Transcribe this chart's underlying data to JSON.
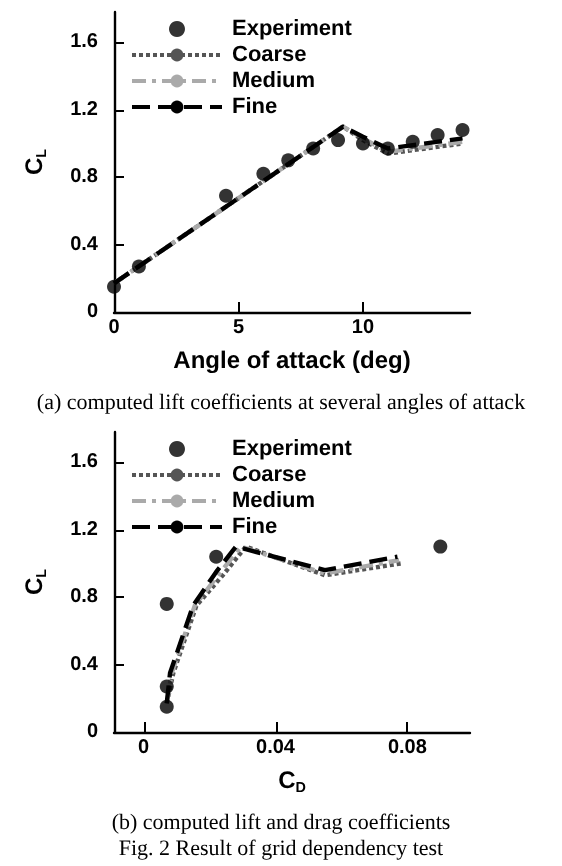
{
  "chart_data": [
    {
      "type": "line",
      "xlabel": "Angle of attack (deg)",
      "ylabel": "C$_{L}$",
      "xlim": [
        0,
        14.3
      ],
      "xticks": [
        0,
        5,
        10
      ],
      "ylim": [
        0,
        1.78
      ],
      "yticks": [
        0,
        0.4,
        0.8,
        1.2,
        1.6
      ],
      "grid": false,
      "legend": "top left",
      "annotations": [
        "(a) computed lift coefficients at several angles of attack"
      ],
      "series": [
        {
          "name": "Experiment",
          "type": "scatter",
          "marker": "circle",
          "color": "#000000",
          "x": [
            0,
            1,
            4.5,
            6,
            7,
            8,
            9,
            10,
            11,
            12,
            13,
            14
          ],
          "values": [
            0.15,
            0.27,
            0.69,
            0.82,
            0.9,
            0.97,
            1.02,
            1.0,
            0.97,
            1.01,
            1.05,
            1.08
          ]
        },
        {
          "name": "Coarse",
          "color": "#555555",
          "line_style": "dotted",
          "x": [
            0,
            9.2,
            10,
            11,
            14
          ],
          "values": [
            0.17,
            1.1,
            1.02,
            0.94,
            1.0
          ]
        },
        {
          "name": "Medium",
          "color": "#aaaaaa",
          "line_style": "dashdot",
          "x": [
            0,
            9.2,
            10,
            11,
            14
          ],
          "values": [
            0.17,
            1.1,
            1.03,
            0.95,
            1.01
          ]
        },
        {
          "name": "Fine",
          "color": "#000000",
          "line_style": "dashed",
          "x": [
            0,
            9.2,
            10,
            11,
            14
          ],
          "values": [
            0.17,
            1.1,
            1.04,
            0.97,
            1.03
          ]
        }
      ]
    },
    {
      "type": "line",
      "xlabel": "C$_{D}$",
      "ylabel": "C$_{L}$",
      "xlim": [
        -0.009,
        0.099
      ],
      "xticks": [
        0,
        0.04,
        0.08
      ],
      "ylim": [
        0,
        1.78
      ],
      "yticks": [
        0,
        0.4,
        0.8,
        1.2,
        1.6
      ],
      "grid": false,
      "legend": "top left",
      "annotations": [
        "(b) computed lift and drag coefficients",
        "Fig. 2 Result of grid dependency test"
      ],
      "series": [
        {
          "name": "Experiment",
          "type": "scatter",
          "marker": "circle",
          "color": "#000000",
          "x": [
            0.007,
            0.007,
            0.007,
            0.022,
            0.09
          ],
          "values": [
            0.15,
            0.27,
            0.76,
            1.04,
            1.1
          ]
        },
        {
          "name": "Coarse",
          "color": "#555555",
          "line_style": "dotted",
          "x": [
            0.007,
            0.009,
            0.016,
            0.024,
            0.031,
            0.055,
            0.078
          ],
          "values": [
            0.17,
            0.35,
            0.75,
            0.93,
            1.1,
            0.93,
            1.0
          ]
        },
        {
          "name": "Medium",
          "color": "#aaaaaa",
          "line_style": "dashdot",
          "x": [
            0.007,
            0.0085,
            0.0155,
            0.023,
            0.0295,
            0.055,
            0.0775
          ],
          "values": [
            0.17,
            0.35,
            0.75,
            0.94,
            1.1,
            0.94,
            1.02
          ]
        },
        {
          "name": "Fine",
          "color": "#000000",
          "line_style": "dashed",
          "x": [
            0.007,
            0.008,
            0.015,
            0.022,
            0.028,
            0.055,
            0.077
          ],
          "values": [
            0.17,
            0.35,
            0.75,
            0.95,
            1.1,
            0.96,
            1.04
          ]
        }
      ]
    }
  ]
}
